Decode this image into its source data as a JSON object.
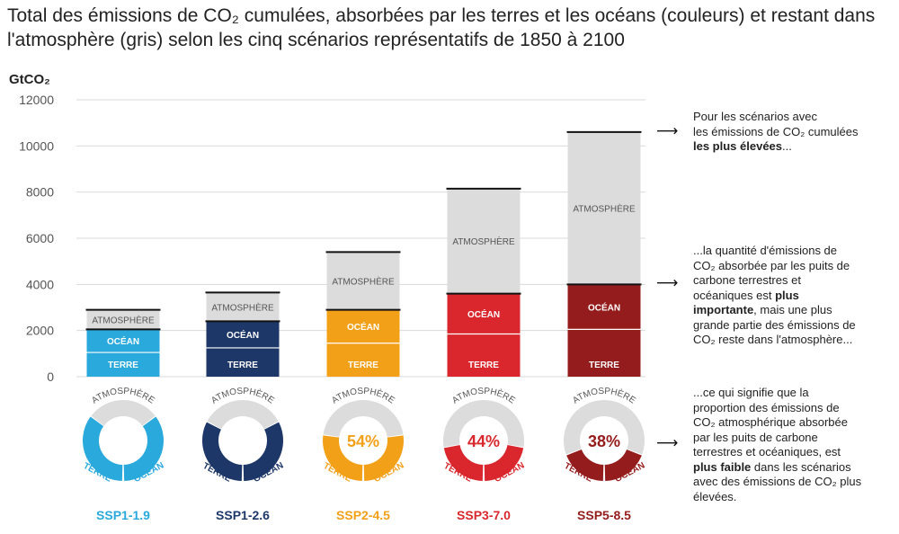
{
  "title_line1": "Total des émissions de CO₂ cumulées, absorbées par les terres et les océans (couleurs) et restant dans",
  "title_line2": "l'atmosphère (gris) selon les cinq scénarios représentatifs de 1850 à 2100",
  "chart_data": {
    "type": "bar",
    "stacked": true,
    "ylabel": "GtCO₂",
    "ylim": [
      0,
      12000
    ],
    "yticks": [
      0,
      2000,
      4000,
      6000,
      8000,
      10000,
      12000
    ],
    "grid": true,
    "categories": [
      "SSP1-1.9",
      "SSP1-2.6",
      "SSP2-4.5",
      "SSP3-7.0",
      "SSP5-8.5"
    ],
    "series": [
      {
        "name": "TERRE",
        "values": [
          1050,
          1250,
          1450,
          1850,
          2050
        ]
      },
      {
        "name": "OCÉAN",
        "values": [
          1000,
          1150,
          1450,
          1750,
          1950
        ]
      },
      {
        "name": "ATMOSPHÈRE",
        "values": [
          850,
          1250,
          2500,
          4550,
          6600
        ]
      }
    ],
    "colors": {
      "SSP1-1.9": "#2aa9dd",
      "SSP1-2.6": "#1d3769",
      "SSP2-4.5": "#f3a019",
      "SSP3-7.0": "#d9272d",
      "SSP5-8.5": "#951c1d",
      "atmosphere": "#dcdcdc"
    },
    "donut_percent": [
      70,
      65,
      54,
      44,
      38
    ],
    "donut_labels": {
      "top": "ATMOSPHÈRE",
      "left": "TERRE",
      "right": "OCÉAN"
    }
  },
  "notes": {
    "note1_line1": "Pour les scénarios avec",
    "note1_line2": "les émissions de CO₂ cumulées",
    "note1_bold": "les plus élevées",
    "note1_end": "...",
    "note2_line1": "...la quantité d'émissions de",
    "note2_line2": "CO₂ absorbée par les puits de",
    "note2_line3": "carbone terrestres et",
    "note2_line4a": "océaniques est",
    "note2_bold1": "plus",
    "note2_bold2": "importante",
    "note2_line5": ", mais une plus",
    "note2_line6": "grande partie des émissions de",
    "note2_line7": "CO₂ reste dans l'atmosphère...",
    "note3_line1": "...ce qui signifie que la",
    "note3_line2": "proportion des émissions de",
    "note3_line3": "CO₂ atmosphérique absorbée",
    "note3_line4": "par les puits de carbone",
    "note3_line5": "terrestres et océaniques, est",
    "note3_bold": "plus faible",
    "note3_line6": " dans les scénarios",
    "note3_line7": "avec des émissions de CO₂ plus",
    "note3_line8": "élevées.",
    "arrow": "⟶"
  }
}
